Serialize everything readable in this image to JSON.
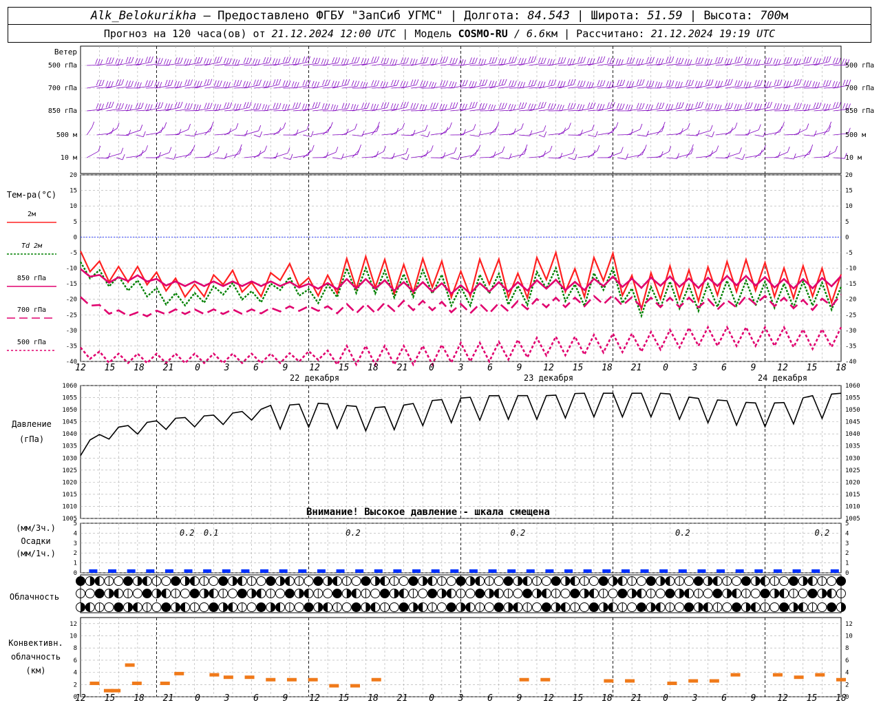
{
  "header": {
    "station": "Alk_Belokurikha",
    "provider": " – Предоставлено ФГБУ \"ЗапСиб УГМС\" | Долгота: ",
    "lon": "84.543",
    "lat_label": " | Широта: ",
    "lat": "51.59",
    "alt_label": " | Высота: ",
    "alt": "700",
    "alt_unit": "м",
    "forecast_prefix": "Прогноз на 120 часа(ов) от ",
    "forecast_time": "21.12.2024 12:00 UTC",
    "model_prefix": " | Модель ",
    "model": "COSMO-RU",
    "model_res": " / 6.6",
    "model_res_unit": "км",
    "calc_prefix": " | Рассчитано: ",
    "calc_time": "21.12.2024 19:19 UTC"
  },
  "wind_panel": {
    "title": "Ветер",
    "levels": [
      "500 гПа",
      "700 гПа",
      "850 гПа",
      "500 м",
      "10  м"
    ]
  },
  "temp_panel": {
    "title": "Тем-ра(°C)",
    "legend": [
      {
        "label": "2м",
        "color": "#ff2020",
        "dash": ""
      },
      {
        "label": "Td  2м",
        "color": "#008000",
        "dash": "3,2"
      },
      {
        "label": "850 гПа",
        "color": "#e0006e",
        "dash": ""
      },
      {
        "label": "700 гПа",
        "color": "#e0006e",
        "dash": "12,6"
      },
      {
        "label": "500 гПа",
        "color": "#e0006e",
        "dash": "3,3"
      }
    ],
    "yticks": [
      "20",
      "15",
      "10",
      "5",
      "0",
      "-5",
      "-10",
      "-15",
      "-20",
      "-25",
      "-30",
      "-35",
      "-40"
    ]
  },
  "time_axis": {
    "hour_labels": [
      "12",
      "15",
      "18",
      "21",
      "0",
      "3",
      "6",
      "9",
      "12",
      "15",
      "18",
      "21",
      "0",
      "3",
      "6",
      "9",
      "12",
      "15",
      "18",
      "21",
      "0",
      "3",
      "6",
      "9",
      "12",
      "15",
      "18"
    ],
    "dates": [
      "22 декабря",
      "23 декабря",
      "24 декабря"
    ]
  },
  "pressure_panel": {
    "label1": "Давление",
    "label2": "(гПа)",
    "yticks": [
      "1060",
      "1055",
      "1050",
      "1045",
      "1040",
      "1035",
      "1030",
      "1025",
      "1020",
      "1015",
      "1010",
      "1005"
    ],
    "warning": "Внимание! Высокое давление - шкала смещена"
  },
  "precip_panel": {
    "label1": "(мм/3ч.)",
    "label2": "Осадки",
    "label3": "(мм/1ч.)",
    "yticks": [
      "5",
      "4",
      "3",
      "2",
      "1",
      "0"
    ],
    "amounts": [
      "0.2",
      "0.1",
      "0.2",
      "0.2",
      "0.2",
      "0.2"
    ]
  },
  "cloud_panel": {
    "label": "Облачность"
  },
  "conv_panel": {
    "label1": "Конвективн.",
    "label2": "облачность",
    "label3": "(км)",
    "yticks": [
      "12",
      "10",
      "8",
      "6",
      "4",
      "2",
      "0"
    ]
  },
  "colors": {
    "t2m": "#ff2020",
    "td": "#008000",
    "upper": "#e0006e",
    "wind": "#8000c0",
    "precip": "#0030ff",
    "conv": "#f07a1a",
    "zero_line": "#3040ff"
  },
  "chart_data": [
    {
      "type": "line",
      "title": "Тем-ра(°C)",
      "x": [
        "12",
        "15",
        "18",
        "21",
        "0",
        "3",
        "6",
        "9",
        "12",
        "15",
        "18",
        "21",
        "0",
        "3",
        "6",
        "9",
        "12",
        "15",
        "18",
        "21",
        "0",
        "3",
        "6",
        "9",
        "12",
        "15",
        "18"
      ],
      "ylim": [
        -40,
        20
      ],
      "series": [
        {
          "name": "2м",
          "values": [
            -7,
            -12,
            -12,
            -15,
            -18,
            -12,
            -18,
            -10,
            -17,
            -12,
            -11,
            -14,
            -11,
            -16,
            -10,
            -17,
            -8,
            -16,
            -8,
            -19,
            -14,
            -16,
            -13,
            -12,
            -15,
            -14,
            -17
          ]
        },
        {
          "name": "Td  2м",
          "values": [
            -10,
            -14,
            -16,
            -20,
            -20,
            -16,
            -20,
            -14,
            -20,
            -14,
            -14,
            -16,
            -14,
            -20,
            -14,
            -20,
            -12,
            -20,
            -12,
            -22,
            -18,
            -20,
            -18,
            -18,
            -19,
            -18,
            -20
          ]
        },
        {
          "name": "850 гПа",
          "values": [
            -11,
            -14,
            -13,
            -15,
            -15,
            -15,
            -15,
            -15,
            -16,
            -15,
            -15,
            -16,
            -16,
            -17,
            -16,
            -16,
            -15,
            -16,
            -14,
            -15,
            -14,
            -15,
            -14,
            -14,
            -15,
            -15,
            -14
          ]
        },
        {
          "name": "700 гПа",
          "values": [
            -20,
            -24,
            -25,
            -24,
            -24,
            -24,
            -24,
            -23,
            -23,
            -23,
            -23,
            -22,
            -22,
            -23,
            -23,
            -22,
            -21,
            -21,
            -20,
            -21,
            -21,
            -21,
            -22,
            -20,
            -21,
            -22,
            -20
          ]
        },
        {
          "name": "500 гПа",
          "values": [
            -37,
            -39,
            -39,
            -39,
            -39,
            -39,
            -39,
            -39,
            -38,
            -38,
            -38,
            -38,
            -38,
            -37,
            -37,
            -36,
            -35,
            -35,
            -34,
            -34,
            -33,
            -32,
            -32,
            -32,
            -32,
            -33,
            -32
          ]
        }
      ]
    },
    {
      "type": "line",
      "title": "Давление",
      "ylabel": "(гПа)",
      "x": [
        "12",
        "15",
        "18",
        "21",
        "0",
        "3",
        "6",
        "9",
        "12",
        "15",
        "18",
        "21",
        "0",
        "3",
        "6",
        "9",
        "12",
        "15",
        "18",
        "21",
        "0",
        "3",
        "6",
        "9",
        "12",
        "15",
        "18"
      ],
      "ylim": [
        1005,
        1060
      ],
      "series": [
        {
          "name": "Давление",
          "values": [
            1034,
            1041,
            1043,
            1045,
            1046,
            1047,
            1049,
            1049,
            1050,
            1049,
            1048,
            1049,
            1051,
            1052,
            1053,
            1053,
            1053,
            1054,
            1054,
            1054,
            1054,
            1052,
            1051,
            1050,
            1050,
            1053,
            1054
          ]
        }
      ]
    },
    {
      "type": "bar",
      "title": "Осадки",
      "x": [
        "12",
        "15",
        "18",
        "21",
        "0",
        "3",
        "6",
        "9",
        "12",
        "15",
        "18",
        "21",
        "0",
        "3",
        "6",
        "9",
        "12",
        "15",
        "18",
        "21",
        "0",
        "3",
        "6",
        "9",
        "12",
        "15",
        "18"
      ],
      "ylim": [
        0,
        5
      ],
      "annotations": [
        "0.2",
        "0.1",
        "0.2",
        "0.2",
        "0.2",
        "0.2"
      ]
    },
    {
      "type": "bar",
      "title": "Конвективн. облачность",
      "ylabel": "(км)",
      "ylim": [
        0,
        13
      ],
      "x": [
        "14",
        "16",
        "17",
        "19",
        "20",
        "24",
        "26",
        "31",
        "33",
        "36",
        "39",
        "42",
        "45",
        "48",
        "51",
        "54",
        "75",
        "78",
        "87",
        "90",
        "96",
        "99",
        "102",
        "105",
        "111",
        "114",
        "117",
        "120"
      ],
      "values": [
        2.2,
        1.0,
        1.0,
        5.2,
        2.2,
        2.2,
        3.8,
        3.6,
        3.2,
        3.2,
        2.8,
        2.8,
        2.8,
        1.8,
        1.8,
        2.8,
        2.8,
        2.8,
        2.6,
        2.6,
        2.2,
        2.6,
        2.6,
        3.6,
        3.6,
        3.2,
        3.6,
        2.8
      ]
    }
  ]
}
